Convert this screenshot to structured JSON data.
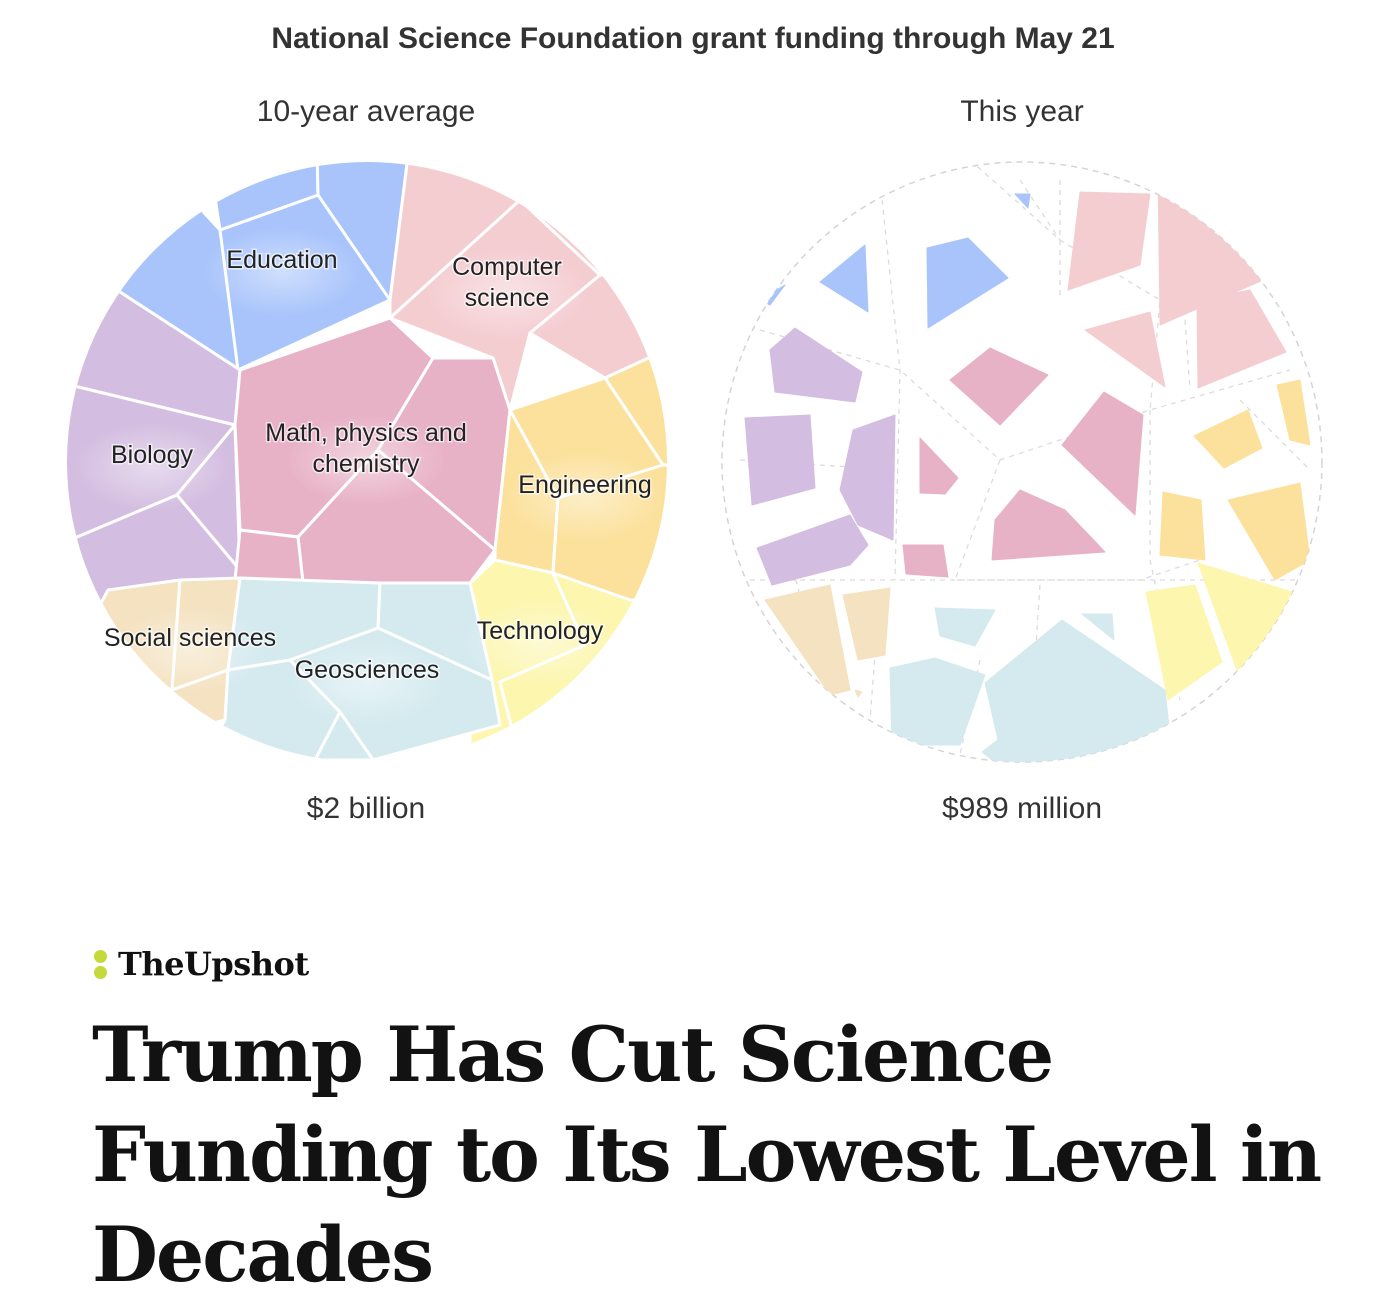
{
  "chart_title": "National Science Foundation grant funding through May 21",
  "chart_data": [
    {
      "type": "voronoi treemap",
      "subtitle": "10-year average",
      "total_label": "$2 billion",
      "categories": [
        "Education",
        "Computer science",
        "Biology",
        "Math, physics and chemistry",
        "Engineering",
        "Social sciences",
        "Geosciences",
        "Technology"
      ],
      "labels": [
        "Education",
        "Computer\nscience",
        "Biology",
        "Math, physics and\nchemistry",
        "Engineering",
        "Social sciences",
        "Geosciences",
        "Technology"
      ]
    },
    {
      "type": "voronoi treemap",
      "subtitle": "This year",
      "total_label": "$989 million",
      "categories": [
        "Education",
        "Computer science",
        "Biology",
        "Math, physics and chemistry",
        "Engineering",
        "Social sciences",
        "Geosciences",
        "Technology"
      ]
    }
  ],
  "colors": {
    "Education": "#a8c4fb",
    "Computer science": "#f4cdd1",
    "Biology": "#d3bde0",
    "Math, physics and chemistry": "#e8b2c6",
    "Engineering": "#fce19c",
    "Social sciences": "#f4e2c0",
    "Geosciences": "#d4eaef",
    "Technology": "#fcf6ae"
  },
  "brand": "TheUpshot",
  "headline": "Trump Has Cut Science Funding to Its Lowest Level in Decades"
}
